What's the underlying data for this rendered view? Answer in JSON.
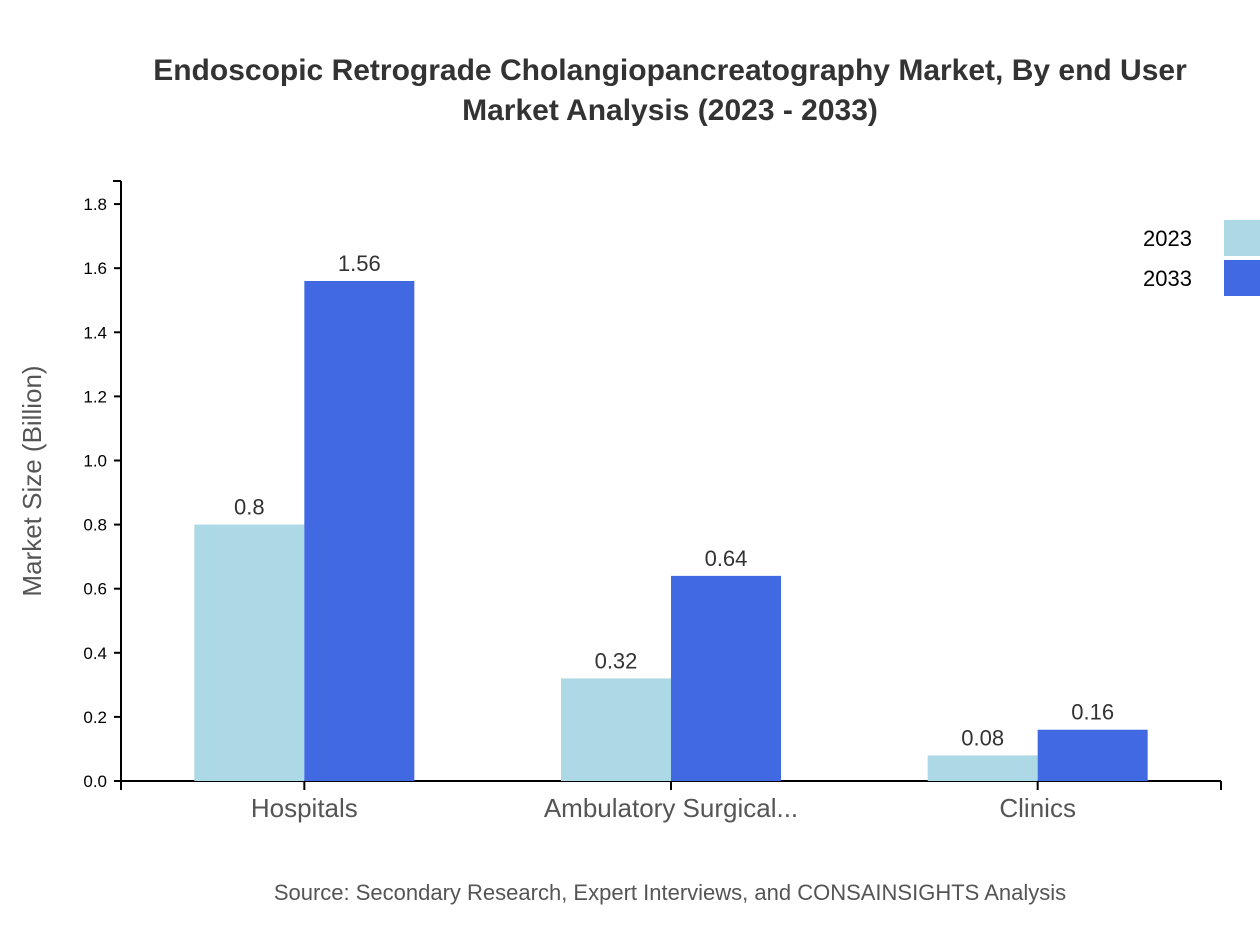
{
  "chart_data": {
    "type": "bar",
    "title_lines": [
      "Endoscopic Retrograde Cholangiopancreatography Market, By end User",
      "Market Analysis (2023 - 2033)"
    ],
    "xlabel": "",
    "ylabel": "Market Size (Billion)",
    "categories": [
      "Hospitals",
      "Ambulatory Surgical...",
      "Clinics"
    ],
    "series": [
      {
        "name": "2023",
        "color": "#add8e6",
        "values": [
          0.8,
          0.32,
          0.08
        ],
        "labels": [
          "0.8",
          "0.32",
          "0.08"
        ]
      },
      {
        "name": "2033",
        "color": "#4169e1",
        "values": [
          1.56,
          0.64,
          0.16
        ],
        "labels": [
          "1.56",
          "0.64",
          "0.16"
        ]
      }
    ],
    "ylim": [
      0,
      1.872
    ],
    "yticks": [
      "0.0",
      "0.2",
      "0.4",
      "0.6",
      "0.8",
      "1.0",
      "1.2",
      "1.4",
      "1.6",
      "1.8"
    ],
    "grid": false,
    "legend_placement": "top-right",
    "source": "Source: Secondary Research, Expert Interviews, and CONSAINSIGHTS Analysis"
  }
}
